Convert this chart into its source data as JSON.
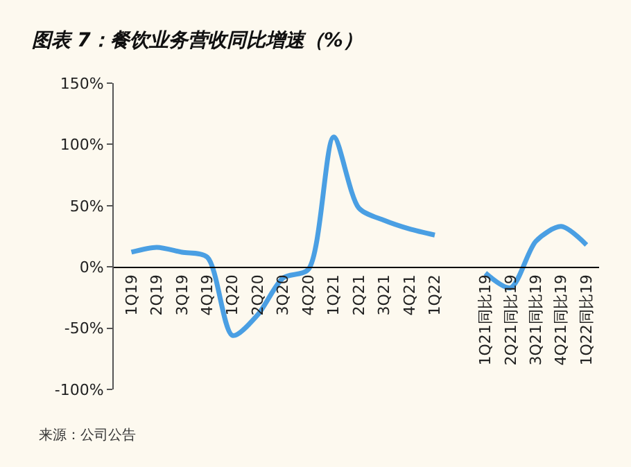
{
  "chart_data": {
    "type": "line",
    "title": "图表 7：餐饮业务营收同比增速（%）",
    "categories": [
      "1Q19",
      "2Q19",
      "3Q19",
      "4Q19",
      "1Q20",
      "2Q20",
      "3Q20",
      "4Q20",
      "1Q21",
      "2Q21",
      "3Q21",
      "4Q21",
      "1Q22",
      null,
      "1Q21同比19",
      "2Q21同比19",
      "3Q21同比19",
      "4Q21同比19",
      "1Q22同比19"
    ],
    "series": [
      {
        "color": "#4a9fe3",
        "values": [
          12,
          16,
          12,
          8,
          -56,
          -39,
          -9,
          -2,
          106,
          48,
          38,
          31,
          26,
          null,
          -5,
          -17,
          21,
          33,
          18
        ]
      }
    ],
    "ylim": [
      -100,
      150
    ],
    "yticks": [
      {
        "value": -100,
        "label": "-100%"
      },
      {
        "value": -50,
        "label": "-50%"
      },
      {
        "value": 0,
        "label": "0%"
      },
      {
        "value": 50,
        "label": "50%"
      },
      {
        "value": 100,
        "label": "100%"
      },
      {
        "value": 150,
        "label": "150%"
      }
    ],
    "grid": false,
    "marker": "none",
    "line_style": "solid",
    "annotations": [
      "来源：公司公告"
    ]
  }
}
